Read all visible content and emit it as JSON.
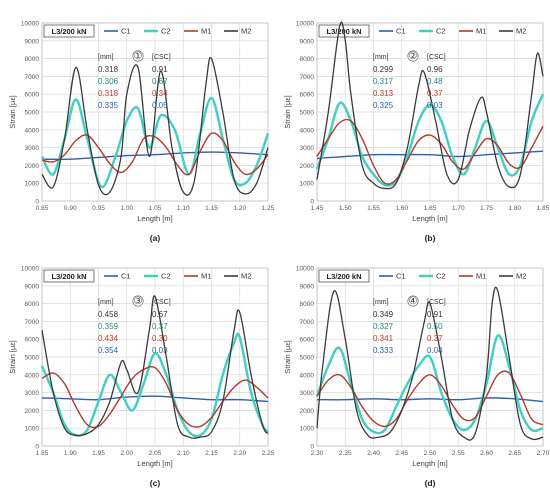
{
  "legend_labels": [
    "C1",
    "C2",
    "M1",
    "M2"
  ],
  "colors": {
    "C1": "#2e5fb0",
    "C2": "#40cfc2",
    "M1": "#b5392b",
    "M2": "#3b3b3b"
  },
  "table_colors": [
    "#333333",
    "#1e8a80",
    "#c0392b",
    "#2f62b5"
  ],
  "chart_data": [
    {
      "type": "line",
      "panel_caption": "(a)",
      "title": "L3/200 kN",
      "marker": "①",
      "xlabel": "Length [m]",
      "ylabel": "Strain [με]",
      "xlim": [
        0.85,
        1.25
      ],
      "ylim": [
        0,
        10000
      ],
      "xticks": [
        "0.85",
        "0.90",
        "0.95",
        "1.00",
        "1.05",
        "1.10",
        "1.15",
        "1.20",
        "1.25"
      ],
      "yticks": [
        "0",
        "1000",
        "2000",
        "3000",
        "4000",
        "5000",
        "6000",
        "7000",
        "8000",
        "9000",
        "10000"
      ],
      "grid": true,
      "legend_position": "top",
      "table_headers": [
        "[mm]",
        "[CSC]"
      ],
      "table_rows": [
        [
          "0.318",
          "0.91"
        ],
        [
          "0.306",
          "0.67"
        ],
        [
          "0.318",
          "0.34"
        ],
        [
          "0.335",
          "0.05"
        ]
      ],
      "series": [
        {
          "name": "C1",
          "x": [
            0.85,
            0.9,
            0.95,
            1.0,
            1.05,
            1.1,
            1.15,
            1.2,
            1.25
          ],
          "values": [
            2350,
            2350,
            2450,
            2550,
            2600,
            2700,
            2750,
            2700,
            2600
          ]
        },
        {
          "name": "C2",
          "x": [
            0.85,
            0.87,
            0.89,
            0.91,
            0.93,
            0.955,
            0.98,
            1.0,
            1.02,
            1.04,
            1.06,
            1.085,
            1.11,
            1.13,
            1.15,
            1.17,
            1.19,
            1.21,
            1.23,
            1.25
          ],
          "values": [
            2500,
            1500,
            3500,
            5700,
            3500,
            800,
            2500,
            4500,
            5200,
            3000,
            4800,
            4000,
            1500,
            3800,
            5800,
            3500,
            1200,
            1000,
            2000,
            3800
          ]
        },
        {
          "name": "M1",
          "x": [
            0.85,
            0.87,
            0.89,
            0.91,
            0.93,
            0.95,
            0.97,
            0.99,
            1.01,
            1.03,
            1.05,
            1.07,
            1.09,
            1.11,
            1.13,
            1.15,
            1.17,
            1.19,
            1.21,
            1.23,
            1.25
          ],
          "values": [
            2300,
            2200,
            2600,
            3400,
            3700,
            3000,
            2100,
            1600,
            2200,
            3500,
            3600,
            3000,
            2000,
            1500,
            2800,
            3800,
            3400,
            2200,
            1500,
            1800,
            2600
          ]
        },
        {
          "name": "M2",
          "x": [
            0.85,
            0.87,
            0.89,
            0.91,
            0.93,
            0.95,
            0.97,
            0.99,
            1.0,
            1.02,
            1.04,
            1.06,
            1.08,
            1.1,
            1.12,
            1.14,
            1.15,
            1.17,
            1.19,
            1.21,
            1.23,
            1.25
          ],
          "values": [
            1500,
            800,
            3500,
            7500,
            4000,
            900,
            500,
            2500,
            6000,
            7500,
            2500,
            7300,
            3000,
            500,
            1200,
            6500,
            8000,
            5000,
            1200,
            400,
            1000,
            3000
          ]
        }
      ]
    },
    {
      "type": "line",
      "panel_caption": "(b)",
      "title": "L3/200 kN",
      "marker": "②",
      "xlabel": "Length [m]",
      "ylabel": "Strain [με]",
      "xlim": [
        1.45,
        1.85
      ],
      "ylim": [
        0,
        10000
      ],
      "xticks": [
        "1.45",
        "1.50",
        "1.55",
        "1.60",
        "1.65",
        "1.70",
        "1.75",
        "1.80",
        "1.85"
      ],
      "yticks": [
        "0",
        "1000",
        "2000",
        "3000",
        "4000",
        "5000",
        "6000",
        "7000",
        "8000",
        "9000",
        "10000"
      ],
      "grid": true,
      "legend_position": "top",
      "table_headers": [
        "[mm]",
        "[CSC]"
      ],
      "table_rows": [
        [
          "0.299",
          "0.96"
        ],
        [
          "0.317",
          "0.48"
        ],
        [
          "0.313",
          "0.37"
        ],
        [
          "0.325",
          "0.03"
        ]
      ],
      "series": [
        {
          "name": "C1",
          "x": [
            1.45,
            1.5,
            1.55,
            1.6,
            1.65,
            1.7,
            1.75,
            1.8,
            1.85
          ],
          "values": [
            2400,
            2500,
            2600,
            2600,
            2600,
            2500,
            2600,
            2700,
            2800
          ]
        },
        {
          "name": "C2",
          "x": [
            1.45,
            1.47,
            1.49,
            1.51,
            1.53,
            1.55,
            1.57,
            1.59,
            1.61,
            1.63,
            1.65,
            1.67,
            1.69,
            1.71,
            1.73,
            1.75,
            1.77,
            1.79,
            1.81,
            1.83,
            1.85
          ],
          "values": [
            1800,
            3500,
            5500,
            4500,
            2500,
            1500,
            900,
            1100,
            2500,
            4500,
            5400,
            4500,
            2500,
            1500,
            3000,
            4500,
            3000,
            1500,
            2000,
            4500,
            6000
          ]
        },
        {
          "name": "M1",
          "x": [
            1.45,
            1.47,
            1.49,
            1.51,
            1.53,
            1.55,
            1.57,
            1.59,
            1.61,
            1.63,
            1.65,
            1.67,
            1.69,
            1.71,
            1.73,
            1.75,
            1.77,
            1.79,
            1.81,
            1.83,
            1.85
          ],
          "values": [
            2500,
            3500,
            4400,
            4500,
            3500,
            2000,
            1000,
            1200,
            2300,
            3400,
            3700,
            3200,
            2200,
            1800,
            2700,
            3500,
            3100,
            2100,
            1900,
            3000,
            4200
          ]
        },
        {
          "name": "M2",
          "x": [
            1.45,
            1.47,
            1.49,
            1.5,
            1.51,
            1.53,
            1.55,
            1.57,
            1.59,
            1.61,
            1.63,
            1.64,
            1.66,
            1.68,
            1.7,
            1.72,
            1.74,
            1.75,
            1.77,
            1.79,
            1.81,
            1.83,
            1.84,
            1.85
          ],
          "values": [
            1200,
            5000,
            9800,
            9000,
            6000,
            2000,
            1000,
            700,
            1000,
            3000,
            6500,
            7200,
            4500,
            1500,
            1200,
            4000,
            5800,
            5000,
            2000,
            800,
            1500,
            6000,
            8300,
            7000
          ]
        }
      ]
    },
    {
      "type": "line",
      "panel_caption": "(c)",
      "title": "L3/200 kN",
      "marker": "③",
      "xlabel": "Length [m]",
      "ylabel": "Strain [με]",
      "xlim": [
        1.85,
        2.25
      ],
      "ylim": [
        0,
        10000
      ],
      "xticks": [
        "1.85",
        "1.90",
        "1.95",
        "2.00",
        "2.05",
        "2.10",
        "2.15",
        "2.20",
        "2.25"
      ],
      "yticks": [
        "0",
        "1000",
        "2000",
        "3000",
        "4000",
        "5000",
        "6000",
        "7000",
        "8000",
        "9000",
        "10000"
      ],
      "grid": true,
      "legend_position": "top",
      "table_headers": [
        "[mm]",
        "[CSC]"
      ],
      "table_rows": [
        [
          "0.458",
          "0.67"
        ],
        [
          "0.359",
          "0.37"
        ],
        [
          "0.434",
          "0.30"
        ],
        [
          "0.354",
          "0.03"
        ]
      ],
      "series": [
        {
          "name": "C1",
          "x": [
            1.85,
            1.9,
            1.95,
            2.0,
            2.05,
            2.1,
            2.15,
            2.2,
            2.25
          ],
          "values": [
            2700,
            2650,
            2600,
            2750,
            2800,
            2700,
            2600,
            2600,
            2500
          ]
        },
        {
          "name": "C2",
          "x": [
            1.85,
            1.87,
            1.89,
            1.91,
            1.93,
            1.95,
            1.97,
            1.99,
            2.01,
            2.03,
            2.05,
            2.07,
            2.09,
            2.11,
            2.13,
            2.15,
            2.17,
            2.19,
            2.2,
            2.22,
            2.24,
            2.25
          ],
          "values": [
            4500,
            3000,
            1200,
            600,
            900,
            2500,
            4000,
            3000,
            2000,
            3500,
            5200,
            4000,
            2000,
            800,
            600,
            1500,
            4000,
            5800,
            6100,
            3000,
            1200,
            800
          ]
        },
        {
          "name": "M1",
          "x": [
            1.85,
            1.87,
            1.89,
            1.91,
            1.93,
            1.95,
            1.97,
            1.99,
            2.01,
            2.03,
            2.05,
            2.07,
            2.09,
            2.11,
            2.13,
            2.15,
            2.17,
            2.19,
            2.21,
            2.23,
            2.25
          ],
          "values": [
            3800,
            4100,
            3500,
            2200,
            1200,
            1100,
            1800,
            2800,
            3800,
            4300,
            4400,
            3500,
            2000,
            1200,
            1100,
            1600,
            2500,
            3300,
            3700,
            3300,
            2700
          ]
        },
        {
          "name": "M2",
          "x": [
            1.85,
            1.87,
            1.89,
            1.91,
            1.93,
            1.95,
            1.97,
            1.99,
            2.0,
            2.02,
            2.04,
            2.05,
            2.07,
            2.09,
            2.11,
            2.13,
            2.15,
            2.17,
            2.19,
            2.2,
            2.22,
            2.24,
            2.25
          ],
          "values": [
            6500,
            3000,
            1000,
            600,
            700,
            1200,
            2500,
            4700,
            4300,
            3000,
            6500,
            8400,
            5000,
            1200,
            500,
            500,
            800,
            2500,
            6500,
            7500,
            4000,
            1200,
            700
          ]
        }
      ]
    },
    {
      "type": "line",
      "panel_caption": "(d)",
      "title": "L3/200 kN",
      "marker": "④",
      "xlabel": "Length [m]",
      "ylabel": "Strain [με]",
      "xlim": [
        2.3,
        2.7
      ],
      "ylim": [
        0,
        10000
      ],
      "xticks": [
        "2.30",
        "2.35",
        "2.40",
        "2.45",
        "2.50",
        "2.55",
        "2.60",
        "2.65",
        "2.70"
      ],
      "yticks": [
        "0",
        "1000",
        "2000",
        "3000",
        "4000",
        "5000",
        "6000",
        "7000",
        "8000",
        "9000",
        "10000"
      ],
      "grid": true,
      "legend_position": "top",
      "table_headers": [
        "[mm]",
        "[CSC]"
      ],
      "table_rows": [
        [
          "0.349",
          "0.91"
        ],
        [
          "0.327",
          "0.50"
        ],
        [
          "0.341",
          "0.37"
        ],
        [
          "0.333",
          "0.04"
        ]
      ],
      "series": [
        {
          "name": "C1",
          "x": [
            2.3,
            2.35,
            2.4,
            2.45,
            2.5,
            2.55,
            2.6,
            2.65,
            2.7
          ],
          "values": [
            2600,
            2600,
            2650,
            2600,
            2650,
            2600,
            2700,
            2650,
            2500
          ]
        },
        {
          "name": "C2",
          "x": [
            2.3,
            2.32,
            2.34,
            2.36,
            2.38,
            2.4,
            2.42,
            2.44,
            2.46,
            2.48,
            2.5,
            2.52,
            2.54,
            2.56,
            2.58,
            2.6,
            2.62,
            2.64,
            2.66,
            2.68,
            2.7
          ],
          "values": [
            2800,
            4500,
            5500,
            3500,
            1500,
            800,
            900,
            2200,
            3500,
            4500,
            5000,
            3000,
            1500,
            900,
            1500,
            3500,
            6200,
            4500,
            2000,
            900,
            1000
          ]
        },
        {
          "name": "M1",
          "x": [
            2.3,
            2.32,
            2.34,
            2.36,
            2.38,
            2.4,
            2.42,
            2.44,
            2.46,
            2.48,
            2.5,
            2.52,
            2.54,
            2.56,
            2.58,
            2.6,
            2.62,
            2.64,
            2.66,
            2.68,
            2.7
          ],
          "values": [
            2800,
            3700,
            4000,
            3300,
            2200,
            1400,
            1100,
            1500,
            2600,
            3500,
            4000,
            3400,
            2300,
            1500,
            1600,
            2800,
            4000,
            4100,
            2900,
            1500,
            1200
          ]
        },
        {
          "name": "M2",
          "x": [
            2.3,
            2.31,
            2.33,
            2.35,
            2.37,
            2.39,
            2.41,
            2.43,
            2.45,
            2.47,
            2.49,
            2.5,
            2.52,
            2.54,
            2.56,
            2.58,
            2.6,
            2.61,
            2.62,
            2.64,
            2.66,
            2.68,
            2.7
          ],
          "values": [
            1000,
            4500,
            8700,
            6000,
            2000,
            600,
            500,
            800,
            2000,
            4000,
            7000,
            8000,
            5000,
            1500,
            500,
            700,
            4000,
            8000,
            8700,
            5000,
            1200,
            400,
            500
          ]
        }
      ]
    }
  ]
}
